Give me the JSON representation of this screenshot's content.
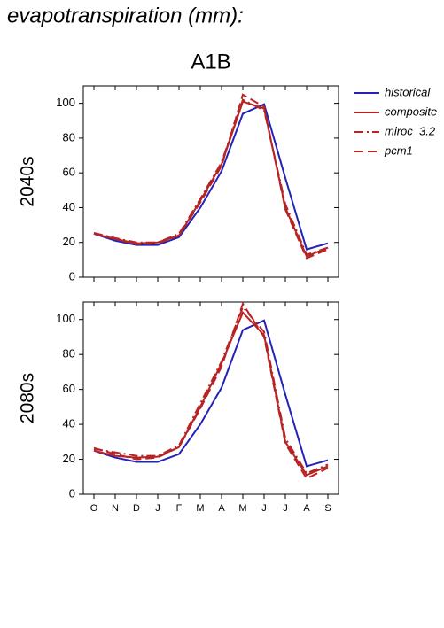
{
  "title": "evapotranspiration (mm):",
  "subtitle": "A1B",
  "chart_data": [
    {
      "type": "line",
      "ylabel": "2040s",
      "ylim": [
        0,
        110
      ],
      "yticks": [
        0,
        20,
        40,
        60,
        80,
        100
      ],
      "series": [
        {
          "name": "historical",
          "color": "#2323b8",
          "dash": "solid",
          "values": [
            25,
            21,
            18.5,
            18.5,
            23,
            40,
            61,
            94,
            99.5,
            57,
            16,
            19.5
          ]
        },
        {
          "name": "composite",
          "color": "#b82323",
          "dash": "solid",
          "values": [
            25,
            22,
            19.5,
            20,
            24,
            44,
            65,
            101,
            97,
            40,
            12,
            17
          ]
        },
        {
          "name": "miroc_3.2",
          "color": "#b82323",
          "dash": "dashdot",
          "values": [
            25.5,
            22.5,
            20,
            20,
            25,
            45,
            66,
            102,
            96,
            42,
            13,
            17
          ]
        },
        {
          "name": "pcm1",
          "color": "#b82323",
          "dash": "dashed",
          "values": [
            25,
            22,
            19,
            19.5,
            24,
            43,
            64,
            105,
            98,
            39,
            11,
            16
          ]
        }
      ]
    },
    {
      "type": "line",
      "ylabel": "2080s",
      "categories": [
        "O",
        "N",
        "D",
        "J",
        "F",
        "M",
        "A",
        "M",
        "J",
        "J",
        "A",
        "S"
      ],
      "ylim": [
        0,
        110
      ],
      "yticks": [
        0,
        20,
        40,
        60,
        80,
        100
      ],
      "series": [
        {
          "name": "historical",
          "color": "#2323b8",
          "dash": "solid",
          "values": [
            25,
            21,
            18.5,
            18.5,
            23,
            40,
            61,
            94,
            99.5,
            57,
            16,
            19.5
          ]
        },
        {
          "name": "composite",
          "color": "#b82323",
          "dash": "solid",
          "values": [
            25,
            22,
            21,
            21.5,
            27,
            50,
            75,
            104,
            91,
            30,
            11,
            16
          ]
        },
        {
          "name": "miroc_3.2",
          "color": "#b82323",
          "dash": "dashdot",
          "values": [
            26,
            24,
            22,
            22,
            28,
            52,
            76,
            107,
            93,
            32,
            12,
            17
          ]
        },
        {
          "name": "pcm1",
          "color": "#b82323",
          "dash": "dashed",
          "values": [
            26.5,
            23,
            20,
            21,
            27,
            49,
            73,
            109,
            90,
            29,
            9,
            15
          ]
        }
      ]
    }
  ]
}
